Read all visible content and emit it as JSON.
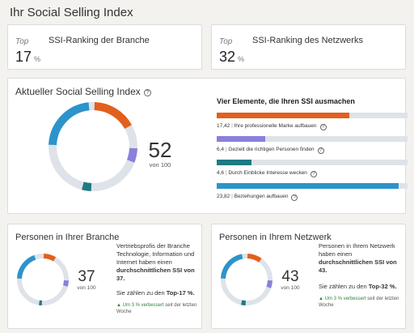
{
  "page": {
    "title": "Ihr Social Selling Index"
  },
  "ranking_industry": {
    "top_label": "Top",
    "label": "SSI-Ranking der Branche",
    "value": "17",
    "unit": "%"
  },
  "ranking_network": {
    "top_label": "Top",
    "label": "SSI-Ranking des Netzwerks",
    "value": "32",
    "unit": "%"
  },
  "current": {
    "title": "Aktueller Social Selling Index",
    "score": "52",
    "of": "von 100",
    "elements_title": "Vier Elemente, die Ihren SSI ausmachen",
    "elements": [
      {
        "value": "17,42",
        "label": "Ihre professionelle Marke aufbauen",
        "fraction": 0.6968,
        "color": "#e1601d"
      },
      {
        "value": "6,4",
        "label": "Gezielt die richtigen Personen finden",
        "fraction": 0.256,
        "color": "#8a7fdc"
      },
      {
        "value": "4,6",
        "label": "Durch Einblicke Interesse wecken",
        "fraction": 0.184,
        "color": "#1d7a82"
      },
      {
        "value": "23,82",
        "label": "Beziehungen aufbauen",
        "fraction": 0.9528,
        "color": "#2b94cb"
      }
    ],
    "separator": "|",
    "help_icon": "?"
  },
  "industry_people": {
    "title": "Personen in Ihrer Branche",
    "score": "37",
    "of": "von 100",
    "segments": [
      9.0,
      5.0,
      3.0,
      20.0
    ],
    "description_pre": "Vertriebsprofis der Branche Technologie, Information und Internet haben einen ",
    "description_bold": "durchschnittlichen SSI von 37.",
    "top_pre": "Sie zählen zu den ",
    "top_bold": "Top-17 %.",
    "improve_arrow": "▲",
    "improve_green": "Um 3 % verbessert",
    "improve_rest": " seit der letzten Woche"
  },
  "network_people": {
    "title": "Personen in Ihrem Netzwerk",
    "score": "43",
    "of": "von 100",
    "segments": [
      10.5,
      6.0,
      4.0,
      22.5
    ],
    "description_pre": "Personen in Ihrem Netzwerk haben einen ",
    "description_bold": "durchschnittlichen SSI von 43.",
    "top_pre": "Sie zählen zu den ",
    "top_bold": "Top-32 %.",
    "improve_arrow": "▲",
    "improve_green": "Um 3 % verbessert",
    "improve_rest": " seit der letzten Woche"
  },
  "colors": {
    "brand": "#e1601d",
    "find": "#8a7fdc",
    "insight": "#1d7a82",
    "relate": "#2b94cb",
    "track": "#dde3e8"
  }
}
